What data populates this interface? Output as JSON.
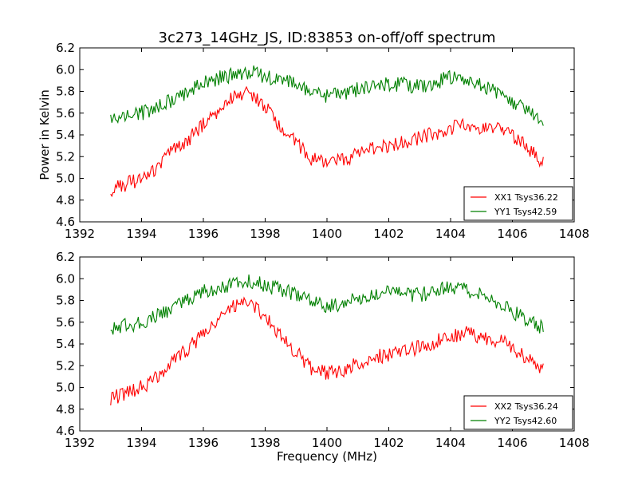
{
  "figure": {
    "title": "3c273_14GHz_JS, ID:83853 on-off/off spectrum",
    "ylabel": "Power in Kelvin",
    "xlabel": "Frequency (MHz)"
  },
  "colors": {
    "xx": "#ff0000",
    "yy": "#008000",
    "axes": "#000000",
    "background": "#ffffff"
  },
  "chart_data": [
    {
      "type": "line",
      "xlim": [
        1392,
        1408
      ],
      "ylim": [
        4.6,
        6.2
      ],
      "x_ticks": [
        "1392",
        "1394",
        "1396",
        "1398",
        "1400",
        "1402",
        "1404",
        "1406",
        "1408"
      ],
      "y_ticks": [
        "4.6",
        "4.8",
        "5.0",
        "5.2",
        "5.4",
        "5.6",
        "5.8",
        "6.0",
        "6.2"
      ],
      "legend_position": "lower-right",
      "grid": false,
      "x": [
        1393.0,
        1393.5,
        1394.0,
        1394.5,
        1395.0,
        1395.5,
        1396.0,
        1396.5,
        1397.0,
        1397.5,
        1398.0,
        1398.5,
        1399.0,
        1399.5,
        1400.0,
        1400.5,
        1401.0,
        1401.5,
        1402.0,
        1402.5,
        1403.0,
        1403.5,
        1404.0,
        1404.5,
        1405.0,
        1405.5,
        1406.0,
        1406.5,
        1407.0
      ],
      "series": [
        {
          "name": "XX1 Tsys36.22",
          "color": "#ff0000",
          "y": [
            4.9,
            4.95,
            5.0,
            5.1,
            5.25,
            5.35,
            5.5,
            5.62,
            5.76,
            5.78,
            5.65,
            5.48,
            5.33,
            5.18,
            5.13,
            5.16,
            5.23,
            5.28,
            5.3,
            5.33,
            5.37,
            5.42,
            5.46,
            5.5,
            5.47,
            5.45,
            5.38,
            5.28,
            5.15
          ]
        },
        {
          "name": "YY1 Tsys42.59",
          "color": "#008000",
          "y": [
            5.52,
            5.58,
            5.6,
            5.66,
            5.72,
            5.8,
            5.88,
            5.92,
            5.95,
            5.98,
            5.94,
            5.9,
            5.86,
            5.8,
            5.75,
            5.77,
            5.82,
            5.85,
            5.87,
            5.86,
            5.85,
            5.88,
            5.93,
            5.9,
            5.85,
            5.79,
            5.7,
            5.62,
            5.55
          ]
        }
      ]
    },
    {
      "type": "line",
      "xlim": [
        1392,
        1408
      ],
      "ylim": [
        4.6,
        6.2
      ],
      "x_ticks": [
        "1392",
        "1394",
        "1396",
        "1398",
        "1400",
        "1402",
        "1404",
        "1406",
        "1408"
      ],
      "y_ticks": [
        "4.6",
        "4.8",
        "5.0",
        "5.2",
        "5.4",
        "5.6",
        "5.8",
        "6.0",
        "6.2"
      ],
      "legend_position": "lower-right",
      "grid": false,
      "x": [
        1393.0,
        1393.5,
        1394.0,
        1394.5,
        1395.0,
        1395.5,
        1396.0,
        1396.5,
        1397.0,
        1397.5,
        1398.0,
        1398.5,
        1399.0,
        1399.5,
        1400.0,
        1400.5,
        1401.0,
        1401.5,
        1402.0,
        1402.5,
        1403.0,
        1403.5,
        1404.0,
        1404.5,
        1405.0,
        1405.5,
        1406.0,
        1406.5,
        1407.0
      ],
      "series": [
        {
          "name": "XX2 Tsys36.24",
          "color": "#ff0000",
          "y": [
            4.9,
            4.95,
            5.0,
            5.1,
            5.24,
            5.35,
            5.5,
            5.62,
            5.75,
            5.78,
            5.65,
            5.47,
            5.32,
            5.18,
            5.13,
            5.15,
            5.23,
            5.28,
            5.3,
            5.33,
            5.37,
            5.42,
            5.46,
            5.5,
            5.46,
            5.44,
            5.37,
            5.27,
            5.15
          ]
        },
        {
          "name": "YY2 Tsys42.60",
          "color": "#008000",
          "y": [
            5.52,
            5.57,
            5.6,
            5.66,
            5.72,
            5.8,
            5.88,
            5.92,
            5.95,
            5.98,
            5.94,
            5.9,
            5.85,
            5.8,
            5.75,
            5.77,
            5.82,
            5.85,
            5.87,
            5.86,
            5.85,
            5.88,
            5.93,
            5.9,
            5.85,
            5.78,
            5.7,
            5.62,
            5.55
          ]
        }
      ]
    }
  ]
}
